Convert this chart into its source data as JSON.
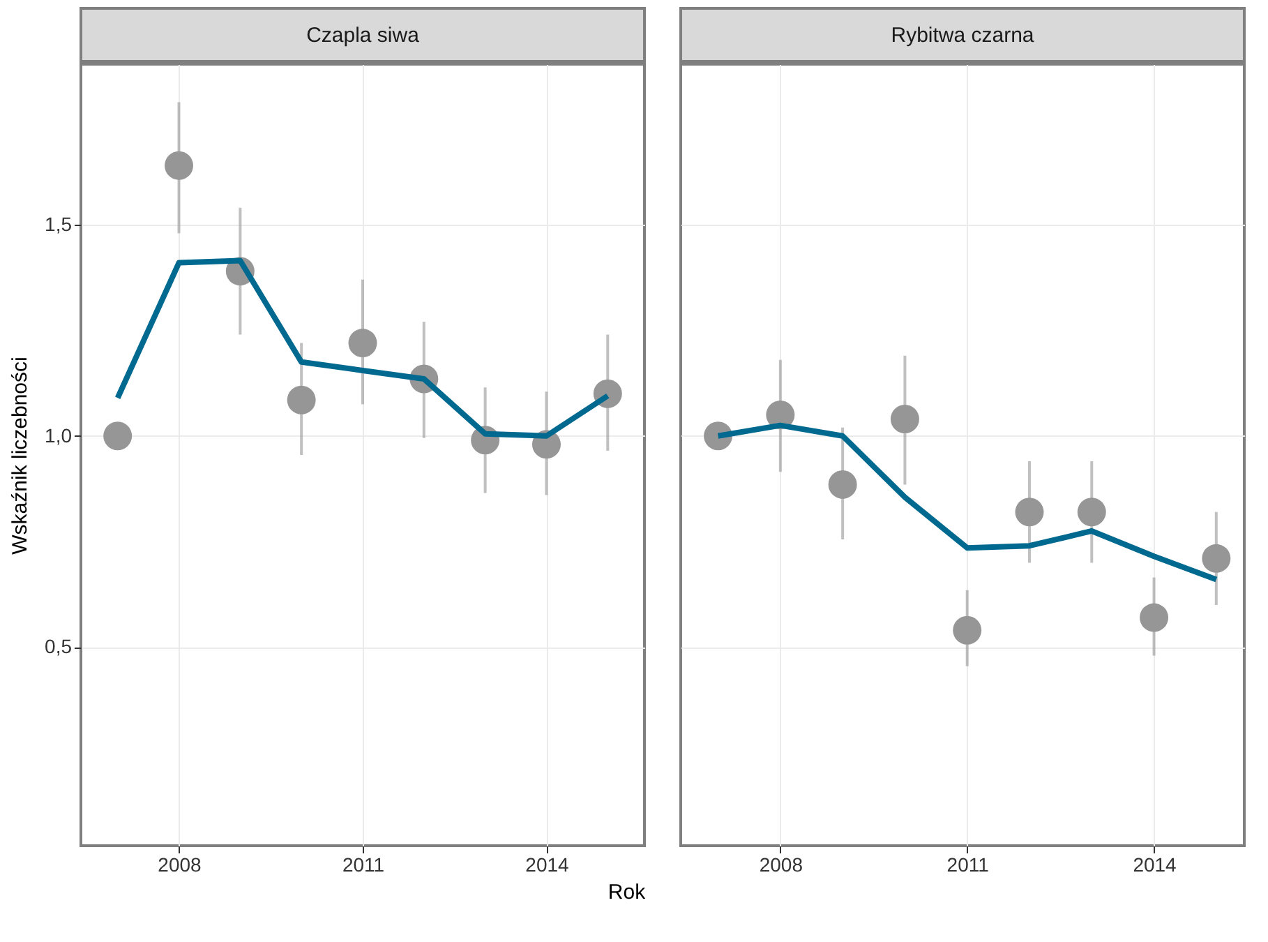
{
  "chart_data": [
    {
      "type": "scatter",
      "title": "Czapla siwa",
      "xlabel": "Rok",
      "ylabel": "Wskaźnik liczebności",
      "x": [
        2007,
        2008,
        2009,
        2010,
        2011,
        2012,
        2013,
        2014,
        2015
      ],
      "xlim": [
        2006.4,
        2015.6
      ],
      "xticks": [
        2008,
        2011,
        2014
      ],
      "ylim": [
        0.03,
        1.88
      ],
      "yticks": [
        {
          "value": 0.5,
          "label": "0,5"
        },
        {
          "value": 1.0,
          "label": "1,0"
        },
        {
          "value": 1.5,
          "label": "1,5"
        }
      ],
      "grid": true,
      "series": [
        {
          "marker": "circle",
          "color": "#969696",
          "values": [
            1.0,
            1.64,
            1.39,
            1.085,
            1.22,
            1.135,
            0.99,
            0.98,
            1.1
          ],
          "errors": [
            null,
            [
              1.48,
              1.79
            ],
            [
              1.24,
              1.54
            ],
            [
              0.955,
              1.22
            ],
            [
              1.075,
              1.37
            ],
            [
              0.995,
              1.27
            ],
            [
              0.865,
              1.115
            ],
            [
              0.86,
              1.105
            ],
            [
              0.965,
              1.24
            ]
          ]
        },
        {
          "type": "line",
          "color": "#00698f",
          "values": [
            1.09,
            1.41,
            1.415,
            1.175,
            1.155,
            1.135,
            1.005,
            1.0,
            1.095
          ]
        }
      ]
    },
    {
      "type": "scatter",
      "title": "Rybitwa czarna",
      "x": [
        2007,
        2008,
        2009,
        2010,
        2011,
        2012,
        2013,
        2014,
        2015
      ],
      "xlim": [
        2006.4,
        2015.45
      ],
      "xticks": [
        2008,
        2011,
        2014
      ],
      "ylim": [
        0.03,
        1.88
      ],
      "yticks": [
        {
          "value": 0.5,
          "label": null
        },
        {
          "value": 1.0,
          "label": null
        },
        {
          "value": 1.5,
          "label": null
        }
      ],
      "grid": true,
      "tick_labels": "x",
      "series": [
        {
          "marker": "circle",
          "color": "#969696",
          "values": [
            1.0,
            1.05,
            0.885,
            1.04,
            0.54,
            0.82,
            0.82,
            0.57,
            0.71
          ],
          "errors": [
            null,
            [
              0.915,
              1.18
            ],
            [
              0.755,
              1.02
            ],
            [
              0.885,
              1.19
            ],
            [
              0.455,
              0.635
            ],
            [
              0.7,
              0.94
            ],
            [
              0.7,
              0.94
            ],
            [
              0.48,
              0.665
            ],
            [
              0.6,
              0.82
            ]
          ]
        },
        {
          "type": "line",
          "color": "#00698f",
          "values": [
            1.0,
            1.025,
            1.0,
            0.855,
            0.735,
            0.74,
            0.775,
            0.715,
            0.66
          ]
        }
      ]
    }
  ]
}
